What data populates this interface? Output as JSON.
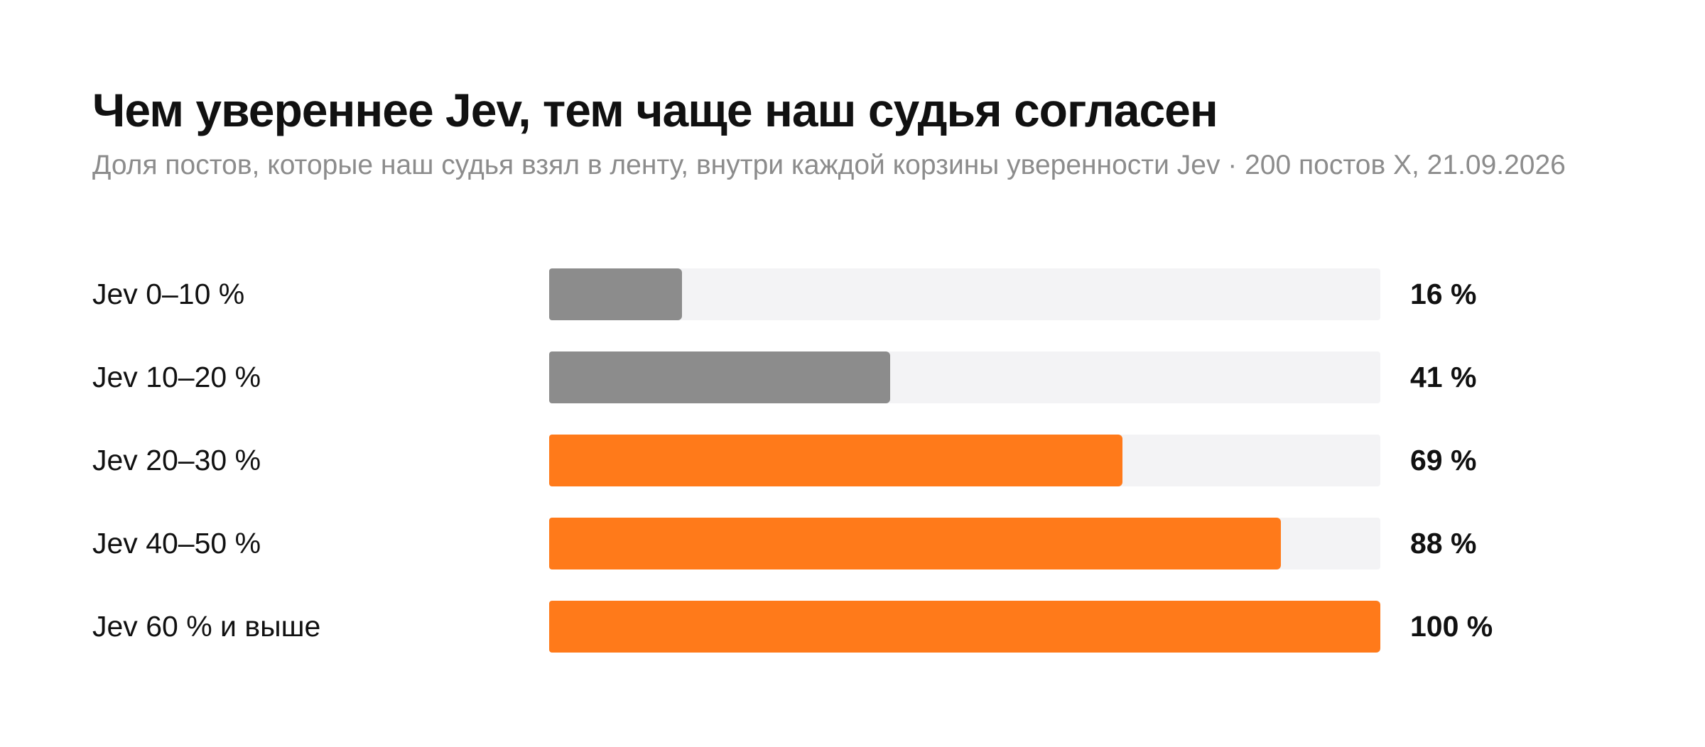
{
  "colors": {
    "low": "#8c8c8c",
    "high": "#ff7a1a",
    "track": "#f3f3f5"
  },
  "chart_data": {
    "type": "bar",
    "orientation": "horizontal",
    "title": "Чем увереннее Jev, тем чаще наш судья согласен",
    "subtitle": "Доля постов, которые наш судья взял в ленту, внутри каждой корзины уверенности Jev · 200 постов X, 21.09.2026",
    "categories": [
      "Jev 0–10 %",
      "Jev 10–20 %",
      "Jev 20–30 %",
      "Jev 40–50 %",
      "Jev 60 % и выше"
    ],
    "values": [
      16,
      41,
      69,
      88,
      100
    ],
    "value_labels": [
      "16 %",
      "41 %",
      "69 %",
      "88 %",
      "100 %"
    ],
    "bar_colors": [
      "#8c8c8c",
      "#8c8c8c",
      "#ff7a1a",
      "#ff7a1a",
      "#ff7a1a"
    ],
    "xlim": [
      0,
      100
    ],
    "grid": false,
    "legend": "none"
  }
}
